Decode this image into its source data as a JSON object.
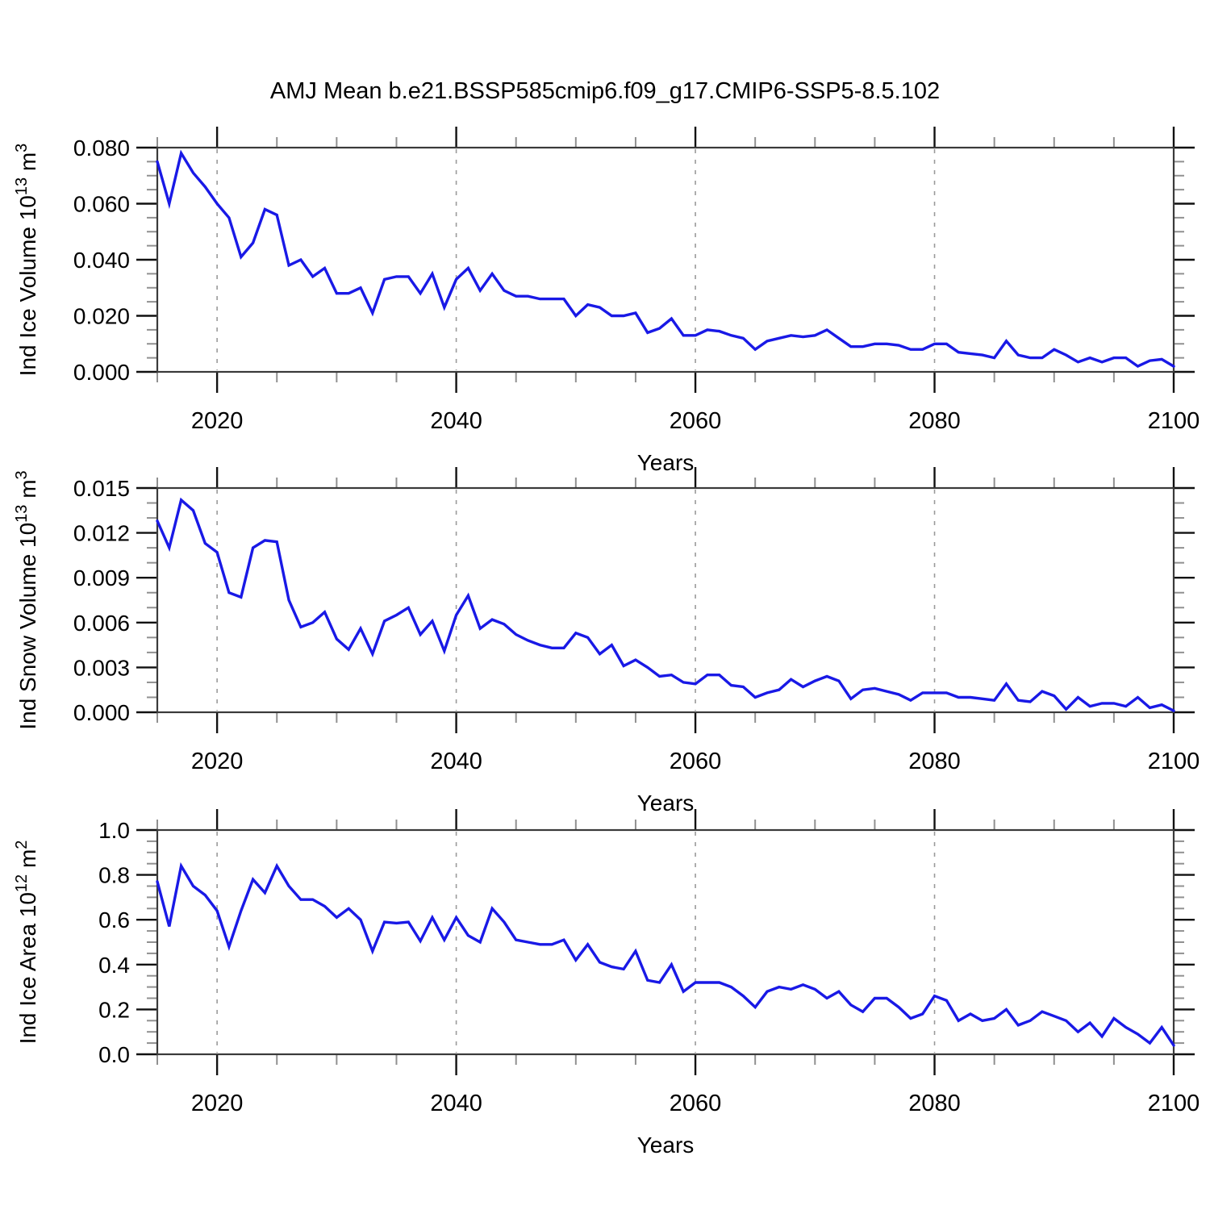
{
  "title": "AMJ Mean b.e21.BSSP585cmip6.f09_g17.CMIP6-SSP5-8.5.102",
  "colors": {
    "line": "#1919e6",
    "frame": "#3a3a3a",
    "major_tick": "#111111",
    "minor_tick": "#909090",
    "gridline": "#9a9a9a",
    "text": "#000000",
    "background": "#ffffff"
  },
  "chart_data": [
    {
      "type": "line",
      "series_name": "Ind Ice Volume",
      "ylabel_plain": "Ind Ice Volume 10^13 m^3",
      "ylabel_parts": [
        {
          "t": "Ind Ice Volume 10"
        },
        {
          "t": "13",
          "sup": true
        },
        {
          "t": " m"
        },
        {
          "t": "3",
          "sup": true
        }
      ],
      "xlabel": "Years",
      "ylim": [
        0,
        0.08
      ],
      "yticks": [
        0,
        0.02,
        0.04,
        0.06,
        0.08
      ],
      "ytick_labels": [
        "0.000",
        "0.020",
        "0.040",
        "0.060",
        "0.080"
      ],
      "yminor_step": 0.005,
      "xlim": [
        2015,
        2100
      ],
      "xticks": [
        2020,
        2040,
        2060,
        2080,
        2100
      ],
      "xtick_labels": [
        "2020",
        "2040",
        "2060",
        "2080",
        "2100"
      ],
      "xminor_step": 5,
      "gridlines_x": [
        2020,
        2040,
        2060,
        2080
      ],
      "grid": "vertical-dashed",
      "legend": "none",
      "x_start": 2015,
      "x_step": 1,
      "values": [
        0.075,
        0.06,
        0.078,
        0.071,
        0.066,
        0.06,
        0.055,
        0.041,
        0.046,
        0.058,
        0.056,
        0.038,
        0.04,
        0.034,
        0.037,
        0.028,
        0.028,
        0.03,
        0.021,
        0.033,
        0.034,
        0.034,
        0.028,
        0.035,
        0.023,
        0.033,
        0.037,
        0.029,
        0.035,
        0.029,
        0.027,
        0.027,
        0.026,
        0.026,
        0.026,
        0.02,
        0.024,
        0.023,
        0.02,
        0.02,
        0.021,
        0.014,
        0.0155,
        0.019,
        0.013,
        0.013,
        0.015,
        0.0145,
        0.013,
        0.012,
        0.008,
        0.011,
        0.012,
        0.013,
        0.0125,
        0.013,
        0.015,
        0.012,
        0.009,
        0.009,
        0.01,
        0.01,
        0.0095,
        0.008,
        0.008,
        0.01,
        0.01,
        0.007,
        0.0065,
        0.006,
        0.005,
        0.011,
        0.006,
        0.005,
        0.005,
        0.008,
        0.006,
        0.0035,
        0.005,
        0.0035,
        0.005,
        0.005,
        0.002,
        0.004,
        0.0045,
        0.002
      ]
    },
    {
      "type": "line",
      "series_name": "Ind Snow Volume",
      "ylabel_plain": "Ind Snow Volume 10^13 m^3",
      "ylabel_parts": [
        {
          "t": "Ind Snow Volume 10"
        },
        {
          "t": "13",
          "sup": true
        },
        {
          "t": " m"
        },
        {
          "t": "3",
          "sup": true
        }
      ],
      "xlabel": "Years",
      "ylim": [
        0,
        0.015
      ],
      "yticks": [
        0,
        0.003,
        0.006,
        0.009,
        0.012,
        0.015
      ],
      "ytick_labels": [
        "0.000",
        "0.003",
        "0.006",
        "0.009",
        "0.012",
        "0.015"
      ],
      "yminor_step": 0.001,
      "xlim": [
        2015,
        2100
      ],
      "xticks": [
        2020,
        2040,
        2060,
        2080,
        2100
      ],
      "xtick_labels": [
        "2020",
        "2040",
        "2060",
        "2080",
        "2100"
      ],
      "xminor_step": 5,
      "gridlines_x": [
        2020,
        2040,
        2060,
        2080
      ],
      "grid": "vertical-dashed",
      "legend": "none",
      "x_start": 2015,
      "x_step": 1,
      "values": [
        0.0128,
        0.011,
        0.0142,
        0.0135,
        0.0113,
        0.0107,
        0.008,
        0.0077,
        0.011,
        0.0115,
        0.0114,
        0.0075,
        0.0057,
        0.006,
        0.0067,
        0.0049,
        0.0042,
        0.0056,
        0.0039,
        0.0061,
        0.0065,
        0.007,
        0.0052,
        0.0061,
        0.0041,
        0.0065,
        0.0078,
        0.0056,
        0.0062,
        0.0059,
        0.0052,
        0.0048,
        0.0045,
        0.0043,
        0.0043,
        0.0053,
        0.005,
        0.0039,
        0.0045,
        0.0031,
        0.0035,
        0.003,
        0.0024,
        0.0025,
        0.002,
        0.0019,
        0.0025,
        0.0025,
        0.0018,
        0.0017,
        0.001,
        0.0013,
        0.0015,
        0.0022,
        0.0017,
        0.0021,
        0.0024,
        0.0021,
        0.0009,
        0.0015,
        0.0016,
        0.0014,
        0.0012,
        0.0008,
        0.0013,
        0.0013,
        0.0013,
        0.001,
        0.001,
        0.0009,
        0.0008,
        0.0019,
        0.0008,
        0.0007,
        0.0014,
        0.0011,
        0.0002,
        0.001,
        0.0004,
        0.0006,
        0.0006,
        0.0004,
        0.001,
        0.0003,
        0.0005,
        0.0001
      ]
    },
    {
      "type": "line",
      "series_name": "Ind Ice Area",
      "ylabel_plain": "Ind Ice Area 10^12 m^2",
      "ylabel_parts": [
        {
          "t": "Ind Ice Area 10"
        },
        {
          "t": "12",
          "sup": true
        },
        {
          "t": " m"
        },
        {
          "t": "2",
          "sup": true
        }
      ],
      "xlabel": "Years",
      "ylim": [
        0,
        1.0
      ],
      "yticks": [
        0,
        0.2,
        0.4,
        0.6,
        0.8,
        1.0
      ],
      "ytick_labels": [
        "0.0",
        "0.2",
        "0.4",
        "0.6",
        "0.8",
        "1.0"
      ],
      "yminor_step": 0.05,
      "xlim": [
        2015,
        2100
      ],
      "xticks": [
        2020,
        2040,
        2060,
        2080,
        2100
      ],
      "xtick_labels": [
        "2020",
        "2040",
        "2060",
        "2080",
        "2100"
      ],
      "xminor_step": 5,
      "gridlines_x": [
        2020,
        2040,
        2060,
        2080
      ],
      "grid": "vertical-dashed",
      "legend": "none",
      "x_start": 2015,
      "x_step": 1,
      "values": [
        0.77,
        0.57,
        0.84,
        0.75,
        0.71,
        0.64,
        0.48,
        0.64,
        0.78,
        0.72,
        0.84,
        0.75,
        0.69,
        0.69,
        0.66,
        0.61,
        0.65,
        0.6,
        0.46,
        0.59,
        0.585,
        0.59,
        0.505,
        0.61,
        0.51,
        0.61,
        0.53,
        0.5,
        0.65,
        0.59,
        0.51,
        0.5,
        0.49,
        0.49,
        0.51,
        0.42,
        0.49,
        0.41,
        0.39,
        0.38,
        0.46,
        0.33,
        0.32,
        0.4,
        0.28,
        0.32,
        0.32,
        0.32,
        0.3,
        0.26,
        0.21,
        0.28,
        0.3,
        0.29,
        0.31,
        0.29,
        0.25,
        0.28,
        0.22,
        0.19,
        0.25,
        0.25,
        0.21,
        0.16,
        0.18,
        0.26,
        0.24,
        0.15,
        0.18,
        0.15,
        0.16,
        0.2,
        0.13,
        0.15,
        0.19,
        0.17,
        0.15,
        0.1,
        0.14,
        0.08,
        0.16,
        0.12,
        0.09,
        0.05,
        0.12,
        0.04
      ]
    }
  ]
}
